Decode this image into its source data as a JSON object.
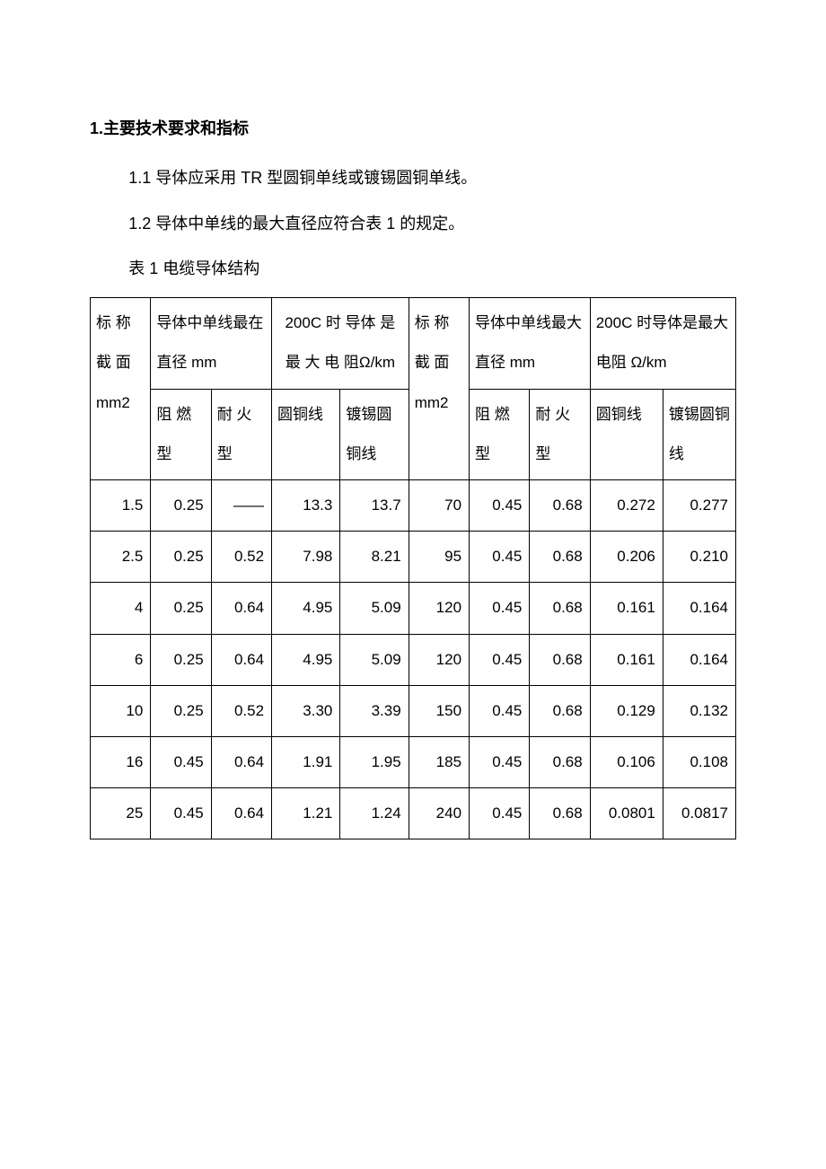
{
  "heading": "1.主要技术要求和指标",
  "para1": "1.1 导体应采用 TR 型圆铜单线或镀锡圆铜单线。",
  "para2": "1.2 导体中单线的最大直径应符合表 1 的规定。",
  "tableCaption": "表 1 电缆导体结构",
  "headers": {
    "sectionArea": "标 称截 面mm2",
    "maxDiam1": "导体中单线最在直径 mm",
    "resistance1a": "200C 时 导体 是 最 大 电 阻Ω/km",
    "maxDiam2": "导体中单线最大直径 mm",
    "resistance2": "200C 时导体是最大电阻 Ω/km",
    "flameRetardant": "阻 燃型",
    "fireResistant": "耐 火型",
    "roundCopper": "圆铜线",
    "tinnedCopper": "镀锡圆铜线"
  },
  "rows": [
    {
      "c1": "1.5",
      "c2": "0.25",
      "c3": "——",
      "c4": "13.3",
      "c5": "13.7",
      "c6": "70",
      "c7": "0.45",
      "c8": "0.68",
      "c9": "0.272",
      "c10": "0.277"
    },
    {
      "c1": "2.5",
      "c2": "0.25",
      "c3": "0.52",
      "c4": "7.98",
      "c5": "8.21",
      "c6": "95",
      "c7": "0.45",
      "c8": "0.68",
      "c9": "0.206",
      "c10": "0.210"
    },
    {
      "c1": "4",
      "c2": "0.25",
      "c3": "0.64",
      "c4": "4.95",
      "c5": "5.09",
      "c6": "120",
      "c7": "0.45",
      "c8": "0.68",
      "c9": "0.161",
      "c10": "0.164"
    },
    {
      "c1": "6",
      "c2": "0.25",
      "c3": "0.64",
      "c4": "4.95",
      "c5": "5.09",
      "c6": "120",
      "c7": "0.45",
      "c8": "0.68",
      "c9": "0.161",
      "c10": "0.164"
    },
    {
      "c1": "10",
      "c2": "0.25",
      "c3": "0.52",
      "c4": "3.30",
      "c5": "3.39",
      "c6": "150",
      "c7": "0.45",
      "c8": "0.68",
      "c9": "0.129",
      "c10": "0.132"
    },
    {
      "c1": "16",
      "c2": "0.45",
      "c3": "0.64",
      "c4": "1.91",
      "c5": "1.95",
      "c6": "185",
      "c7": "0.45",
      "c8": "0.68",
      "c9": "0.106",
      "c10": "0.108"
    },
    {
      "c1": "25",
      "c2": "0.45",
      "c3": "0.64",
      "c4": "1.21",
      "c5": "1.24",
      "c6": "240",
      "c7": "0.45",
      "c8": "0.68",
      "c9": "0.0801",
      "c10": "0.0817"
    }
  ]
}
